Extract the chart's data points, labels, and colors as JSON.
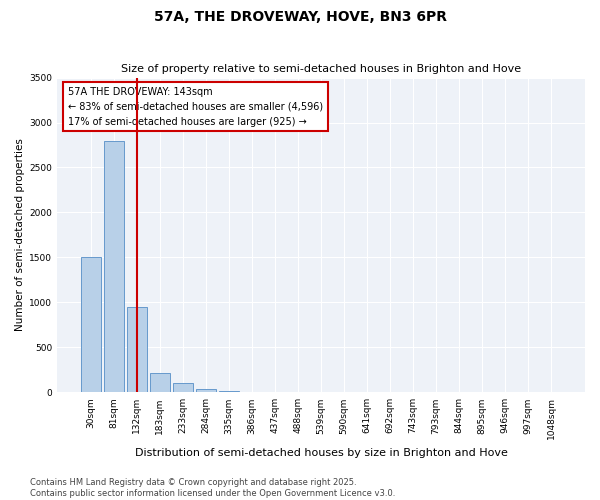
{
  "title1": "57A, THE DROVEWAY, HOVE, BN3 6PR",
  "title2": "Size of property relative to semi-detached houses in Brighton and Hove",
  "xlabel": "Distribution of semi-detached houses by size in Brighton and Hove",
  "ylabel": "Number of semi-detached properties",
  "categories": [
    "30sqm",
    "81sqm",
    "132sqm",
    "183sqm",
    "233sqm",
    "284sqm",
    "335sqm",
    "386sqm",
    "437sqm",
    "488sqm",
    "539sqm",
    "590sqm",
    "641sqm",
    "692sqm",
    "743sqm",
    "793sqm",
    "844sqm",
    "895sqm",
    "946sqm",
    "997sqm",
    "1048sqm"
  ],
  "values": [
    1500,
    2800,
    950,
    220,
    100,
    40,
    10,
    3,
    1,
    0,
    0,
    0,
    0,
    0,
    0,
    0,
    0,
    0,
    0,
    0,
    0
  ],
  "bar_color": "#b8d0e8",
  "bar_edge_color": "#6699cc",
  "vline_x": 2.5,
  "vline_color": "#cc0000",
  "annotation_line1": "57A THE DROVEWAY: 143sqm",
  "annotation_line2": "← 83% of semi-detached houses are smaller (4,596)",
  "annotation_line3": "17% of semi-detached houses are larger (925) →",
  "annotation_box_color": "#ffffff",
  "annotation_box_edge": "#cc0000",
  "ylim": [
    0,
    3500
  ],
  "yticks": [
    0,
    500,
    1000,
    1500,
    2000,
    2500,
    3000,
    3500
  ],
  "footer_line1": "Contains HM Land Registry data © Crown copyright and database right 2025.",
  "footer_line2": "Contains public sector information licensed under the Open Government Licence v3.0.",
  "bg_color": "#eef2f8",
  "title_fontsize": 10,
  "subtitle_fontsize": 8,
  "ylabel_fontsize": 7.5,
  "xlabel_fontsize": 8,
  "tick_fontsize": 6.5,
  "annot_fontsize": 7,
  "footer_fontsize": 6
}
